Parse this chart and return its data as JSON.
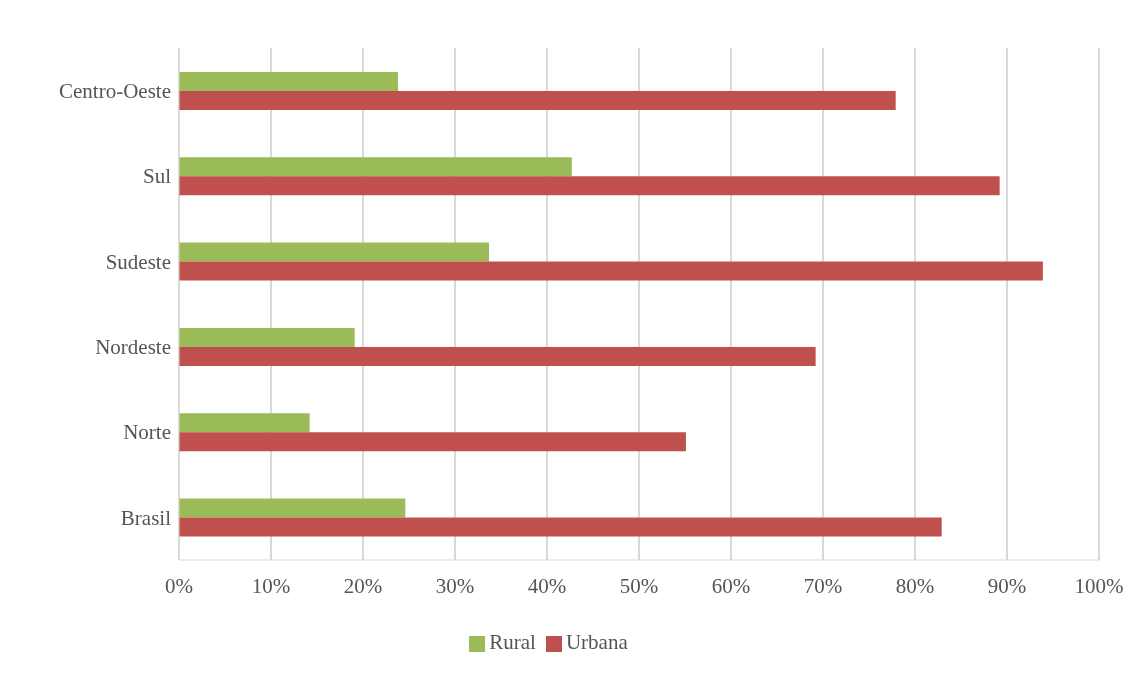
{
  "chart_data": {
    "type": "bar",
    "orientation": "horizontal",
    "categories": [
      "Centro-Oeste",
      "Sul",
      "Sudeste",
      "Nordeste",
      "Norte",
      "Brasil"
    ],
    "series": [
      {
        "name": "Rural",
        "color": "#9bbb59",
        "values": [
          23.8,
          42.7,
          33.7,
          19.1,
          14.2,
          24.6
        ]
      },
      {
        "name": "Urbana",
        "color": "#c0504d",
        "values": [
          77.9,
          89.2,
          93.9,
          69.2,
          55.1,
          82.9
        ]
      }
    ],
    "xlim": [
      0,
      100
    ],
    "xticks": [
      {
        "value": 0,
        "label": "0%"
      },
      {
        "value": 10,
        "label": "10%"
      },
      {
        "value": 20,
        "label": "20%"
      },
      {
        "value": 30,
        "label": "30%"
      },
      {
        "value": 40,
        "label": "40%"
      },
      {
        "value": 50,
        "label": "50%"
      },
      {
        "value": 60,
        "label": "60%"
      },
      {
        "value": 70,
        "label": "70%"
      },
      {
        "value": 80,
        "label": "80%"
      },
      {
        "value": 90,
        "label": "90%"
      },
      {
        "value": 100,
        "label": "100%"
      }
    ],
    "grid": "x",
    "legend": "bottom"
  }
}
